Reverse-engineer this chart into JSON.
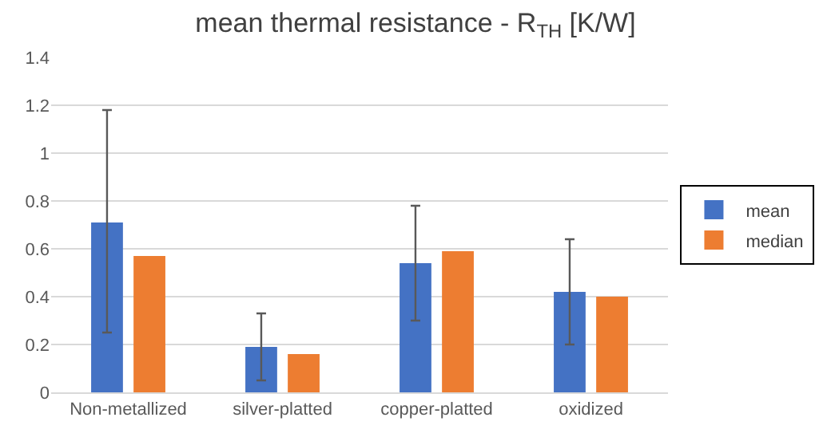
{
  "chart_data": {
    "type": "bar",
    "title": "mean thermal resistance - R$_{TH}$ [K/W]",
    "categories": [
      "Non-metallized",
      "silver-platted",
      "copper-platted",
      "oxidized"
    ],
    "series": [
      {
        "name": "mean",
        "color": "#4472c4",
        "values": [
          0.71,
          0.19,
          0.54,
          0.42
        ],
        "errors": [
          [
            0.25,
            1.18
          ],
          [
            0.05,
            0.33
          ],
          [
            0.3,
            0.78
          ],
          [
            0.2,
            0.64
          ]
        ]
      },
      {
        "name": "median",
        "color": "#ed7d31",
        "values": [
          0.57,
          0.16,
          0.59,
          0.4
        ]
      }
    ],
    "ylim": [
      0,
      1.4
    ],
    "yticks": [
      0,
      0.2,
      0.4,
      0.6,
      0.8,
      1,
      1.2,
      1.4
    ],
    "grid": "y",
    "legend": "right"
  }
}
